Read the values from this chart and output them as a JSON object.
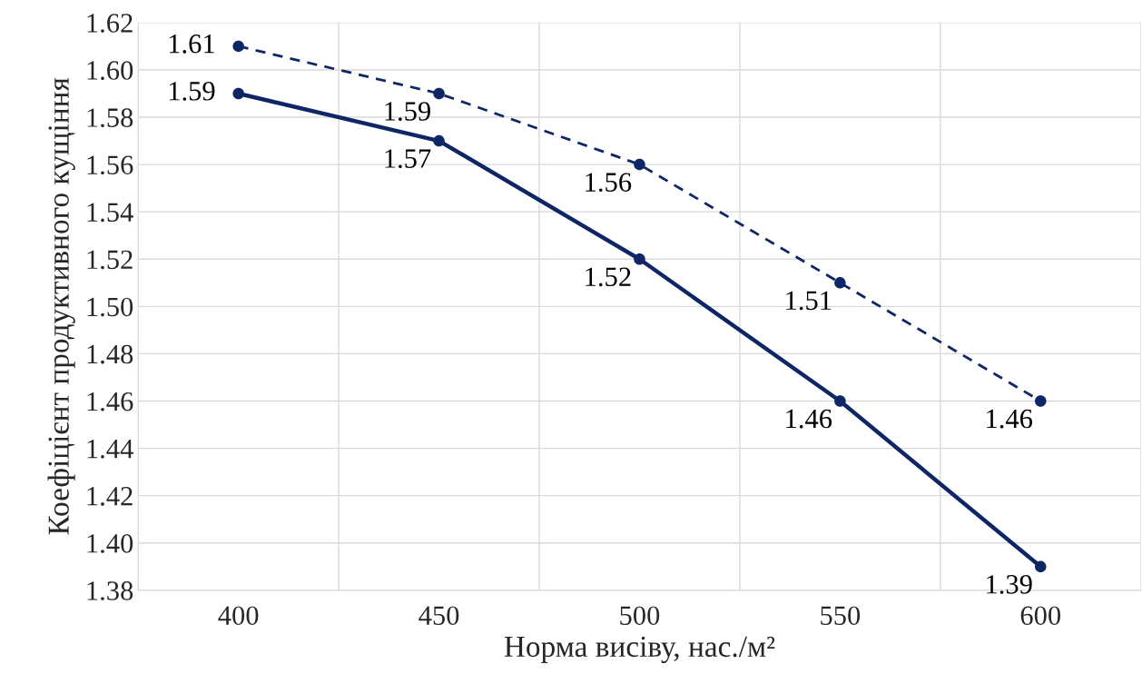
{
  "chart_data": {
    "type": "line",
    "xlabel": "Норма висіву, нас./м²",
    "ylabel": "Коефіцієнт продуктивного кущіння",
    "categories": [
      "400",
      "450",
      "500",
      "550",
      "600"
    ],
    "series": [
      {
        "color": "#0e2666",
        "line_style": "dashed",
        "values": [
          1.61,
          1.59,
          1.56,
          1.51,
          1.46
        ]
      },
      {
        "color": "#0e2666",
        "line_style": "solid",
        "values": [
          1.59,
          1.57,
          1.52,
          1.46,
          1.39
        ]
      }
    ],
    "ylim": [
      1.38,
      1.62
    ],
    "yticks": [
      {
        "value": 1.38,
        "label": "1.38"
      },
      {
        "value": 1.4,
        "label": "1.40"
      },
      {
        "value": 1.42,
        "label": "1.42"
      },
      {
        "value": 1.44,
        "label": "1.44"
      },
      {
        "value": 1.46,
        "label": "1.46"
      },
      {
        "value": 1.48,
        "label": "1.48"
      },
      {
        "value": 1.5,
        "label": "1.50"
      },
      {
        "value": 1.52,
        "label": "1.52"
      },
      {
        "value": 1.54,
        "label": "1.54"
      },
      {
        "value": 1.56,
        "label": "1.56"
      },
      {
        "value": 1.58,
        "label": "1.58"
      },
      {
        "value": 1.6,
        "label": "1.60"
      },
      {
        "value": 1.62,
        "label": "1.62"
      }
    ],
    "grid": true,
    "marker": "circle",
    "data_labels": true
  }
}
